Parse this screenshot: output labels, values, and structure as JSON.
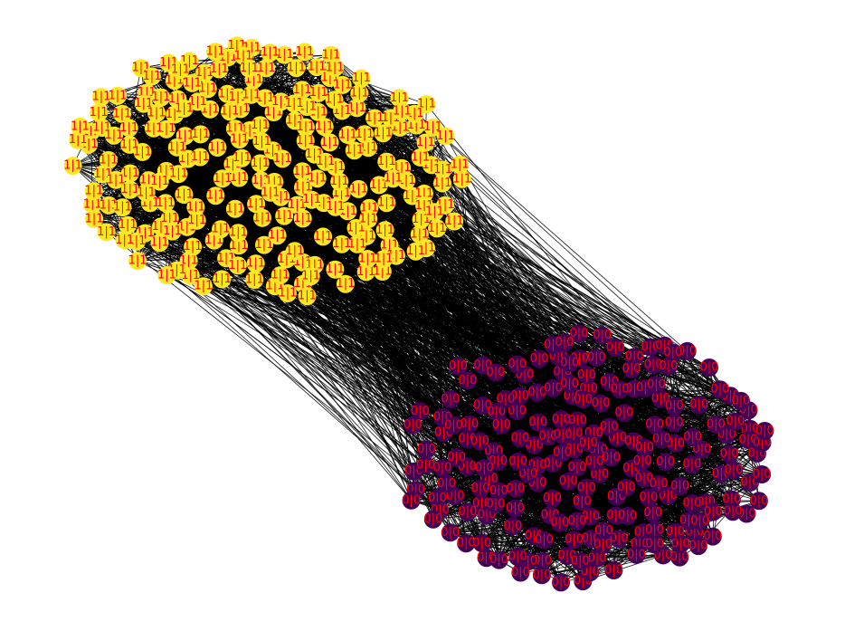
{
  "graph": {
    "type": "network",
    "edge_color": "#000000",
    "groups": [
      {
        "name": "",
        "node_label": "1|1",
        "node_color": "#fde725",
        "label_color": "#ff0000",
        "approx_node_count": 230,
        "position": "top-left"
      },
      {
        "name": "",
        "node_label": "0|0",
        "node_color": "#440154",
        "label_color": "#ff0000",
        "approx_node_count": 200,
        "position": "bottom-right"
      }
    ]
  }
}
